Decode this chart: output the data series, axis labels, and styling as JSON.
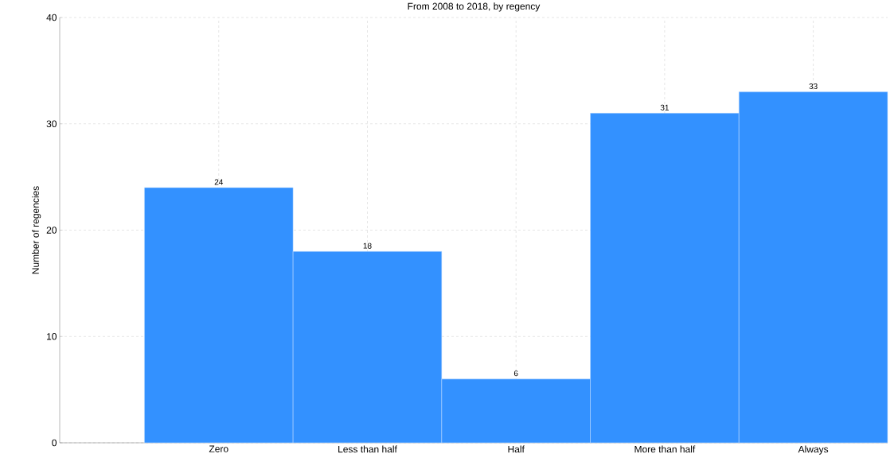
{
  "chart_data": {
    "type": "bar",
    "title": "From 2008 to 2018, by regency",
    "ylabel": "Number of regencies",
    "categories": [
      "Zero",
      "Less than half",
      "Half",
      "More than half",
      "Always"
    ],
    "values": [
      24,
      18,
      6,
      31,
      33
    ],
    "color": "#3391ff",
    "data_labels": true,
    "ylim": [
      0,
      40
    ],
    "yticks": [
      0,
      10,
      20,
      30,
      40
    ],
    "grid": true
  }
}
